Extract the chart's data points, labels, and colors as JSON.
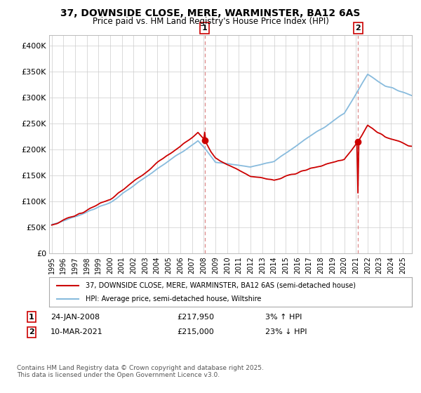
{
  "title": "37, DOWNSIDE CLOSE, MERE, WARMINSTER, BA12 6AS",
  "subtitle": "Price paid vs. HM Land Registry's House Price Index (HPI)",
  "ylabel_ticks": [
    "£0",
    "£50K",
    "£100K",
    "£150K",
    "£200K",
    "£250K",
    "£300K",
    "£350K",
    "£400K"
  ],
  "ytick_values": [
    0,
    50000,
    100000,
    150000,
    200000,
    250000,
    300000,
    350000,
    400000
  ],
  "ylim": [
    0,
    420000
  ],
  "xlim_start": 1994.8,
  "xlim_end": 2025.8,
  "marker1_x": 2008.07,
  "marker1_y": 217950,
  "marker2_x": 2021.19,
  "marker2_y": 215000,
  "sale1_date": "24-JAN-2008",
  "sale1_price": "£217,950",
  "sale1_hpi": "3% ↑ HPI",
  "sale2_date": "10-MAR-2021",
  "sale2_price": "£215,000",
  "sale2_hpi": "23% ↓ HPI",
  "legend_label1": "37, DOWNSIDE CLOSE, MERE, WARMINSTER, BA12 6AS (semi-detached house)",
  "legend_label2": "HPI: Average price, semi-detached house, Wiltshire",
  "footer": "Contains HM Land Registry data © Crown copyright and database right 2025.\nThis data is licensed under the Open Government Licence v3.0.",
  "line_color_red": "#cc0000",
  "line_color_blue": "#88bbdd",
  "marker_color_red": "#cc0000",
  "vline_color": "#dd8888",
  "background_color": "#ffffff",
  "grid_color": "#cccccc"
}
